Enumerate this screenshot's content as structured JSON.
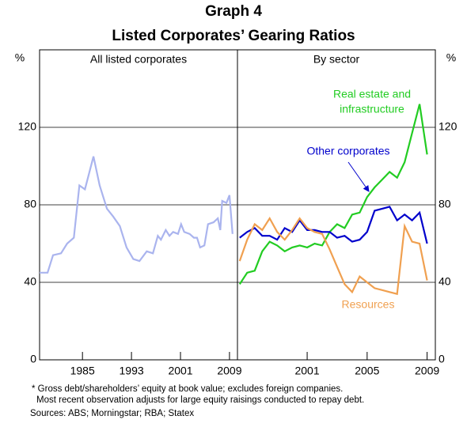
{
  "header": {
    "title": "Graph 4",
    "subtitle": "Listed Corporates’ Gearing Ratios"
  },
  "chart_data": [
    {
      "type": "line",
      "title": "All listed corporates",
      "ylabel": "%",
      "xlim": [
        1978,
        2010.3
      ],
      "xticks": [
        1985,
        1993,
        2001,
        2009
      ],
      "ylim": [
        0,
        160
      ],
      "yticks": [
        0,
        40,
        80,
        120
      ],
      "grid": true,
      "x": [
        1978.0,
        1979.3,
        1980.2,
        1981.5,
        1982.5,
        1983.6,
        1984.5,
        1985.4,
        1986.8,
        1987.8,
        1989.0,
        1990.0,
        1991.1,
        1992.2,
        1993.3,
        1994.3,
        1995.5,
        1996.5,
        1997.3,
        1997.8,
        1998.6,
        1999.2,
        1999.8,
        2000.6,
        2001.1,
        2001.6,
        2002.5,
        2003.2,
        2003.7,
        2004.2,
        2004.9,
        2005.5,
        2006.4,
        2007.1,
        2007.5,
        2007.8,
        2008.5,
        2009.0,
        2009.5
      ],
      "series": [
        {
          "name": "All listed corporates",
          "color": "#aab4ee",
          "values": [
            45,
            45,
            54,
            55,
            60,
            63,
            90,
            88,
            105,
            90,
            78,
            74,
            69,
            58,
            52,
            51,
            56,
            55,
            64,
            62,
            67,
            64,
            66,
            65,
            70,
            66,
            65,
            63,
            63,
            58,
            59,
            70,
            71,
            73,
            67,
            82,
            81,
            85,
            65
          ]
        }
      ]
    },
    {
      "type": "line",
      "title": "By sector",
      "ylabel": "%",
      "xlim": [
        1996.35,
        2009.55
      ],
      "xticks": [
        2001,
        2005,
        2009
      ],
      "ylim": [
        0,
        160
      ],
      "yticks": [
        0,
        40,
        80,
        120
      ],
      "grid": true,
      "x": [
        1996.5,
        1997,
        1997.5,
        1998,
        1998.5,
        1999,
        1999.5,
        2000,
        2000.5,
        2001,
        2001.5,
        2002,
        2002.5,
        2003,
        2003.5,
        2004,
        2004.5,
        2005,
        2005.5,
        2006,
        2006.5,
        2007,
        2007.5,
        2008,
        2008.5,
        2009
      ],
      "series": [
        {
          "name": "Real estate and infrastructure",
          "color": "#22cc22",
          "values": [
            39,
            45,
            46,
            56,
            61,
            59,
            56,
            58,
            59,
            58,
            60,
            59,
            66,
            70,
            68,
            75,
            76,
            84,
            89,
            93,
            97,
            94,
            102,
            117,
            132,
            106
          ]
        },
        {
          "name": "Other corporates",
          "color": "#0000cc",
          "values": [
            63,
            66,
            68,
            64,
            64,
            62,
            68,
            66,
            72,
            67,
            67,
            66,
            66,
            63,
            64,
            61,
            62,
            66,
            77,
            78,
            79,
            72,
            75,
            72,
            76,
            60
          ]
        },
        {
          "name": "Resources",
          "color": "#f0a050",
          "values": [
            51,
            62,
            70,
            67,
            73,
            66,
            62,
            67,
            73,
            68,
            66,
            65,
            57,
            48,
            39,
            35,
            43,
            40,
            37,
            36,
            35,
            34,
            69,
            61,
            60,
            41
          ]
        }
      ],
      "annotations": [
        "Real estate and",
        "infrastructure",
        "Other corporates",
        "Resources"
      ]
    }
  ],
  "notes": [
    "* Gross debt/shareholders’ equity at book value; excludes foreign companies.",
    "Most recent observation adjusts for large equity raisings conducted to repay debt."
  ],
  "sources": "Sources: ABS; Morningstar; RBA; Statex"
}
